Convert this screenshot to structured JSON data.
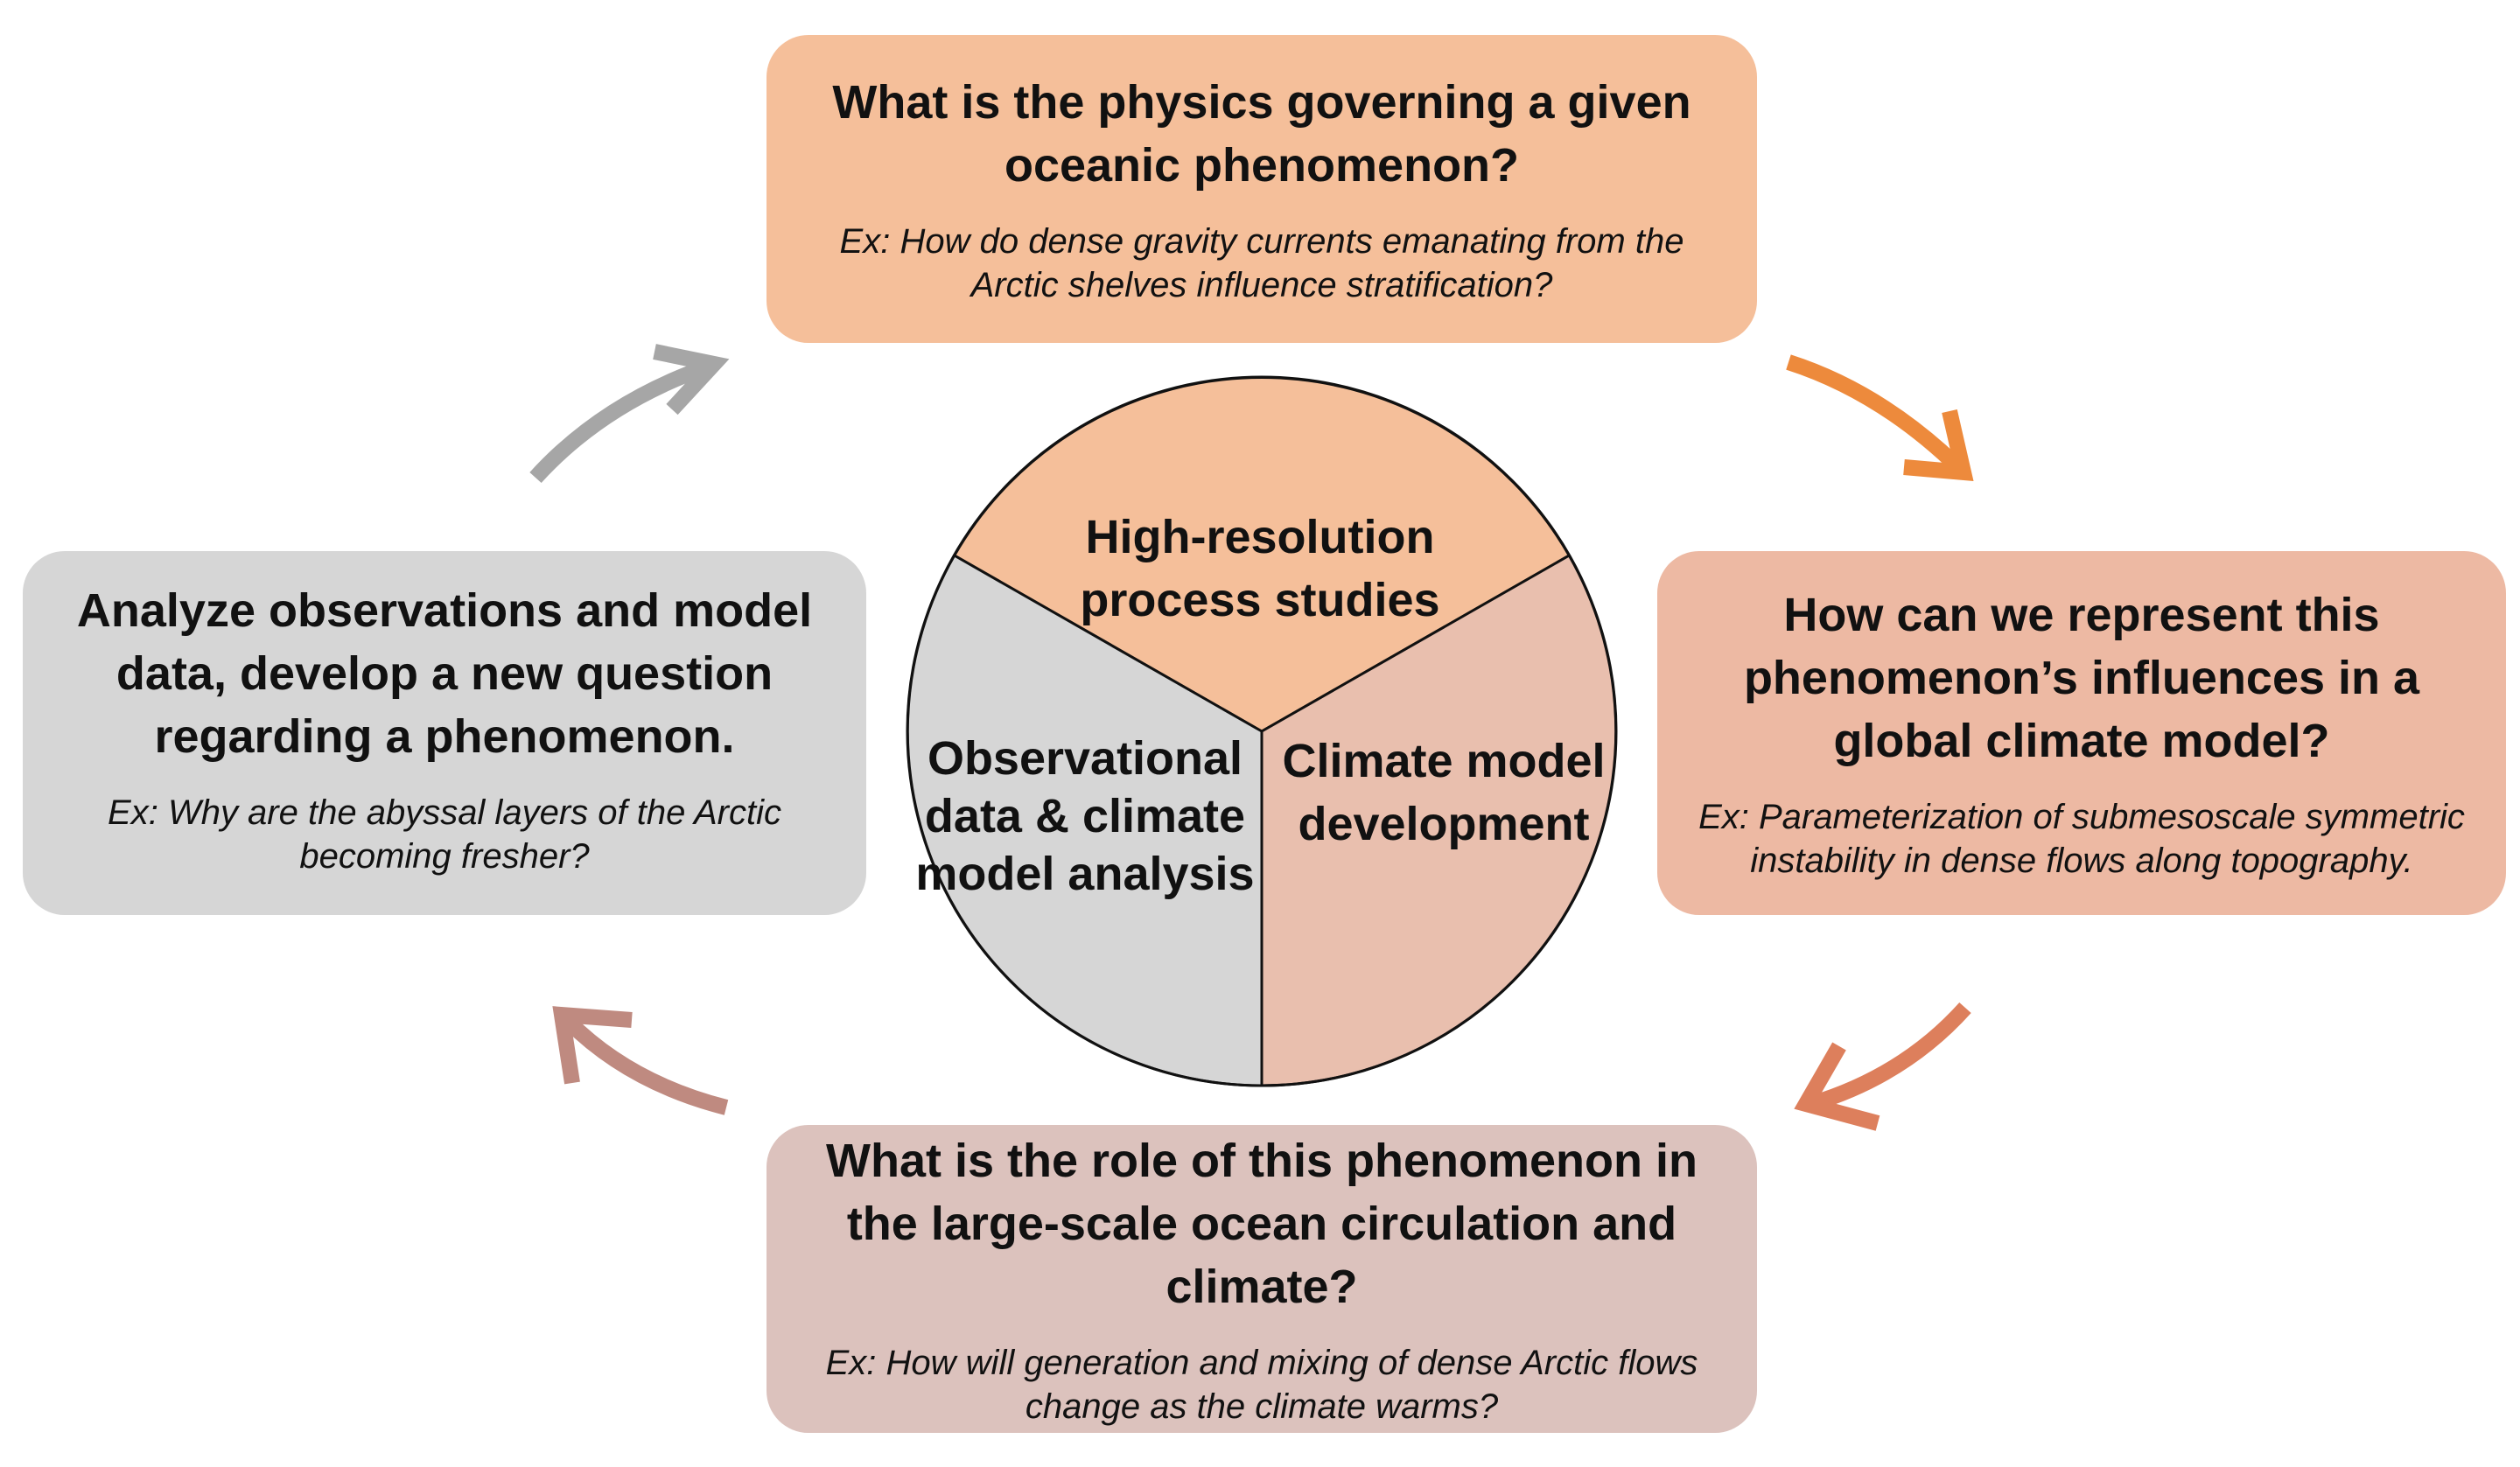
{
  "boxes": {
    "top": {
      "title": "What is the physics governing a given oceanic phenomenon?",
      "example": "Ex: How do dense gravity currents emanating from the Arctic shelves influence stratification?",
      "color": "#f5bf9a"
    },
    "right": {
      "title": "How can we represent this phenomenon’s influences in a global climate model?",
      "example": "Ex: Parameterization of submesoscale symmetric instability in dense flows along topography.",
      "color": "#edb9a3"
    },
    "bottom": {
      "title": "What is the role of this phenomenon in the large-scale ocean circulation and climate?",
      "example": "Ex: How will generation and mixing of dense Arctic flows change as the climate warms?",
      "color": "#dcc2bd"
    },
    "left": {
      "title": "Analyze observations and model data, develop a new question regarding a phenomenon.",
      "example": "Ex: Why are the abyssal layers of the Arctic becoming fresher?",
      "color": "#d6d6d6"
    }
  },
  "pie": {
    "top_label": "High-resolution process studies",
    "left_label": "Observational data & climate model analysis",
    "right_label": "Climate model development",
    "colors": {
      "top": "#f5bf9a",
      "left": "#d6d6d6",
      "right": "#e9bfae"
    }
  },
  "arrows": {
    "top_left_color": "#a6a6a6",
    "top_right_color": "#ed8a3c",
    "bottom_right_color": "#dd7f5c",
    "bottom_left_color": "#bf8a80"
  }
}
